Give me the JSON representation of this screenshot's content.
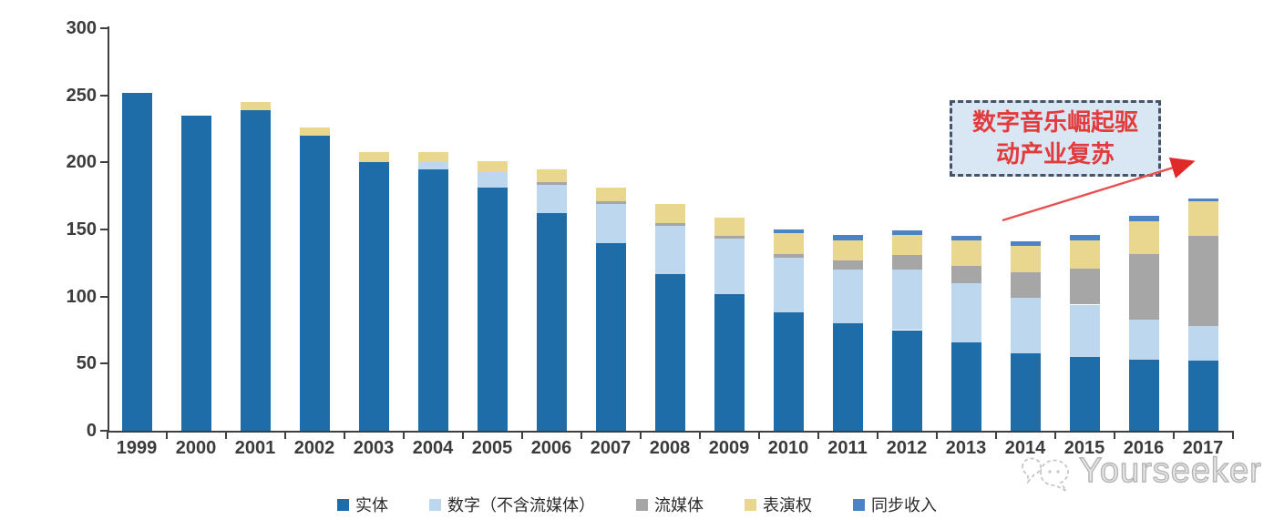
{
  "chart_data": {
    "type": "bar",
    "stacked": true,
    "categories": [
      "1999",
      "2000",
      "2001",
      "2002",
      "2003",
      "2004",
      "2005",
      "2006",
      "2007",
      "2008",
      "2009",
      "2010",
      "2011",
      "2012",
      "2013",
      "2014",
      "2015",
      "2016",
      "2017"
    ],
    "series": [
      {
        "name": "实体",
        "color": "#1E6CA8",
        "values": [
          252,
          235,
          239,
          220,
          200,
          195,
          181,
          162,
          140,
          117,
          102,
          88,
          80,
          75,
          66,
          58,
          55,
          53,
          52
        ]
      },
      {
        "name": "数字（不含流媒体）",
        "color": "#BDD7EE",
        "values": [
          0,
          0,
          0,
          0,
          0,
          5,
          12,
          21,
          29,
          36,
          41,
          41,
          40,
          45,
          44,
          41,
          39,
          30,
          26
        ]
      },
      {
        "name": "流媒体",
        "color": "#A6A6A6",
        "values": [
          0,
          0,
          0,
          0,
          0,
          0,
          0,
          2,
          2,
          2,
          2,
          3,
          7,
          11,
          13,
          19,
          27,
          49,
          67
        ]
      },
      {
        "name": "表演权",
        "color": "#EAD78F",
        "values": [
          0,
          0,
          6,
          6,
          8,
          8,
          8,
          10,
          10,
          14,
          14,
          15,
          15,
          15,
          19,
          20,
          21,
          24,
          26
        ]
      },
      {
        "name": "同步收入",
        "color": "#4B83C3",
        "values": [
          0,
          0,
          0,
          0,
          0,
          0,
          0,
          0,
          0,
          0,
          0,
          3,
          4,
          3,
          3,
          3,
          4,
          4,
          2
        ]
      }
    ],
    "title": "",
    "xlabel": "",
    "ylabel": "",
    "ylim": [
      0,
      300
    ],
    "yticks": [
      0,
      50,
      100,
      150,
      200,
      250,
      300
    ],
    "grid": false,
    "legend_position": "bottom"
  },
  "annotation": {
    "line1": "数字音乐崛起驱",
    "line2": "动产业复苏",
    "text_color": "#E23B3B",
    "border_color": "#44546A",
    "fill_color": "#D9E6F4",
    "arrow_color": "#E8504F"
  },
  "watermark": {
    "text": "Yourseeker"
  }
}
